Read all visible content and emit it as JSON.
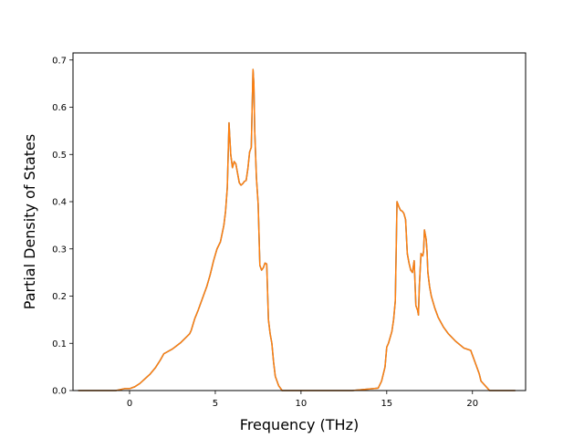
{
  "chart_data": {
    "type": "line",
    "title": "",
    "xlabel": "Frequency (THz)",
    "ylabel": "Partial Density of States",
    "xlim": [
      -3.3,
      23.1
    ],
    "ylim": [
      0.0,
      0.715
    ],
    "grid": false,
    "xticks": [
      0,
      5,
      10,
      15,
      20
    ],
    "yticks": [
      0.0,
      0.1,
      0.2,
      0.3,
      0.4,
      0.5,
      0.6,
      0.7
    ],
    "series": [
      {
        "color": "#1f77b4",
        "x": [
          -3.0,
          -0.8,
          -0.3,
          0.0,
          0.3,
          0.6,
          0.9,
          1.2,
          1.5,
          1.8,
          2.0,
          2.1,
          2.5,
          3.0,
          3.5,
          3.6,
          3.8,
          4.0,
          4.2,
          4.5,
          4.7,
          4.9,
          5.1,
          5.3,
          5.5,
          5.6,
          5.7,
          5.8,
          5.9,
          6.0,
          6.1,
          6.2,
          6.3,
          6.4,
          6.5,
          6.6,
          6.7,
          6.8,
          6.9,
          7.0,
          7.1,
          7.2,
          7.25,
          7.3,
          7.4,
          7.5,
          7.6,
          7.7,
          7.8,
          7.9,
          8.0,
          8.1,
          8.2,
          8.3,
          8.4,
          8.5,
          8.7,
          8.9,
          9.0,
          9.5,
          11.0,
          13.0,
          14.5,
          14.7,
          14.9,
          15.0,
          15.1,
          15.3,
          15.4,
          15.5,
          15.6,
          15.7,
          15.8,
          15.9,
          16.0,
          16.1,
          16.2,
          16.3,
          16.4,
          16.5,
          16.6,
          16.7,
          16.8,
          16.85,
          16.9,
          17.0,
          17.1,
          17.15,
          17.2,
          17.3,
          17.35,
          17.4,
          17.5,
          17.6,
          17.8,
          18.0,
          18.3,
          18.6,
          19.0,
          19.5,
          19.9,
          20.0,
          20.2,
          20.4,
          20.5,
          21.0,
          22.5
        ],
        "values": [
          0.0,
          0.0,
          0.004,
          0.004,
          0.008,
          0.015,
          0.025,
          0.035,
          0.048,
          0.065,
          0.078,
          0.08,
          0.088,
          0.102,
          0.12,
          0.128,
          0.152,
          0.17,
          0.19,
          0.22,
          0.245,
          0.275,
          0.3,
          0.315,
          0.35,
          0.38,
          0.43,
          0.567,
          0.5,
          0.472,
          0.485,
          0.48,
          0.46,
          0.44,
          0.435,
          0.438,
          0.443,
          0.445,
          0.47,
          0.505,
          0.515,
          0.68,
          0.65,
          0.55,
          0.45,
          0.395,
          0.265,
          0.255,
          0.26,
          0.27,
          0.268,
          0.15,
          0.12,
          0.1,
          0.06,
          0.03,
          0.01,
          0.0,
          0.0,
          0.0,
          0.0,
          0.0,
          0.005,
          0.02,
          0.05,
          0.092,
          0.1,
          0.125,
          0.15,
          0.19,
          0.4,
          0.39,
          0.382,
          0.38,
          0.375,
          0.362,
          0.29,
          0.27,
          0.255,
          0.25,
          0.275,
          0.18,
          0.17,
          0.16,
          0.22,
          0.29,
          0.285,
          0.295,
          0.34,
          0.32,
          0.295,
          0.25,
          0.22,
          0.2,
          0.175,
          0.155,
          0.135,
          0.12,
          0.105,
          0.09,
          0.085,
          0.075,
          0.055,
          0.035,
          0.02,
          0.0,
          0.0
        ]
      },
      {
        "color": "#ff7f0e",
        "x": [
          -3.0,
          -0.8,
          -0.3,
          0.0,
          0.3,
          0.6,
          0.9,
          1.2,
          1.5,
          1.8,
          2.0,
          2.1,
          2.5,
          3.0,
          3.5,
          3.6,
          3.8,
          4.0,
          4.2,
          4.5,
          4.7,
          4.9,
          5.1,
          5.3,
          5.5,
          5.6,
          5.7,
          5.8,
          5.9,
          6.0,
          6.1,
          6.2,
          6.3,
          6.4,
          6.5,
          6.6,
          6.7,
          6.8,
          6.9,
          7.0,
          7.1,
          7.2,
          7.25,
          7.3,
          7.4,
          7.5,
          7.6,
          7.7,
          7.8,
          7.9,
          8.0,
          8.1,
          8.2,
          8.3,
          8.4,
          8.5,
          8.7,
          8.9,
          9.0,
          9.5,
          11.0,
          13.0,
          14.5,
          14.7,
          14.9,
          15.0,
          15.1,
          15.3,
          15.4,
          15.5,
          15.6,
          15.7,
          15.8,
          15.9,
          16.0,
          16.1,
          16.2,
          16.3,
          16.4,
          16.5,
          16.6,
          16.7,
          16.8,
          16.85,
          16.9,
          17.0,
          17.1,
          17.15,
          17.2,
          17.3,
          17.35,
          17.4,
          17.5,
          17.6,
          17.8,
          18.0,
          18.3,
          18.6,
          19.0,
          19.5,
          19.9,
          20.0,
          20.2,
          20.4,
          20.5,
          21.0,
          22.5
        ],
        "values": [
          0.0,
          0.0,
          0.004,
          0.004,
          0.008,
          0.015,
          0.025,
          0.035,
          0.048,
          0.065,
          0.078,
          0.08,
          0.088,
          0.102,
          0.12,
          0.128,
          0.152,
          0.17,
          0.19,
          0.22,
          0.245,
          0.275,
          0.3,
          0.315,
          0.35,
          0.38,
          0.43,
          0.567,
          0.5,
          0.472,
          0.485,
          0.48,
          0.46,
          0.44,
          0.435,
          0.438,
          0.443,
          0.445,
          0.47,
          0.505,
          0.515,
          0.68,
          0.65,
          0.55,
          0.45,
          0.395,
          0.265,
          0.255,
          0.26,
          0.27,
          0.268,
          0.15,
          0.12,
          0.1,
          0.06,
          0.03,
          0.01,
          0.0,
          0.0,
          0.0,
          0.0,
          0.0,
          0.005,
          0.02,
          0.05,
          0.092,
          0.1,
          0.125,
          0.15,
          0.19,
          0.4,
          0.39,
          0.382,
          0.38,
          0.375,
          0.362,
          0.29,
          0.27,
          0.255,
          0.25,
          0.275,
          0.18,
          0.17,
          0.16,
          0.22,
          0.29,
          0.285,
          0.295,
          0.34,
          0.32,
          0.295,
          0.25,
          0.22,
          0.2,
          0.175,
          0.155,
          0.135,
          0.12,
          0.105,
          0.09,
          0.085,
          0.075,
          0.055,
          0.035,
          0.02,
          0.0,
          0.0
        ]
      }
    ]
  }
}
